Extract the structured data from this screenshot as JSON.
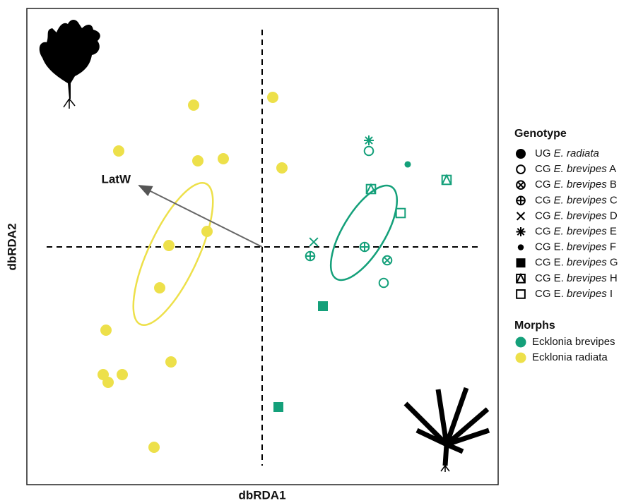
{
  "chart_data": {
    "type": "scatter",
    "x_label": "dbRDA1",
    "y_label": "dbRDA2",
    "xlim": [
      -3.33,
      3.34
    ],
    "ylim": [
      -3.37,
      3.38
    ],
    "arrow": {
      "label": "LatW",
      "x": -1.74,
      "y": 0.87
    },
    "legend_title": "Genotype",
    "morph_title": "Morphs",
    "morphs": [
      {
        "name": "Ecklonia brevipes",
        "color": "#14a07a"
      },
      {
        "name": "Ecklonia radiata",
        "color": "#ede04a"
      }
    ],
    "ellipses": [
      {
        "morph": 1,
        "cx": -1.26,
        "cy": -0.1,
        "rx": 1.1,
        "ry": 0.35,
        "angle": 65
      },
      {
        "morph": 0,
        "cx": 1.44,
        "cy": 0.2,
        "rx": 0.76,
        "ry": 0.3,
        "angle": 59
      }
    ],
    "series": [
      {
        "label_prefix": "UG",
        "label_italic": "E. radiata",
        "shape": "circle-filled",
        "morph": 1,
        "x": [
          -0.97,
          0.15,
          -2.03,
          -0.91,
          -0.55,
          0.28,
          -0.78,
          -1.32,
          -1.45,
          -2.21,
          -1.29,
          -2.25,
          -1.98,
          -2.18,
          -1.53
        ],
        "y": [
          2.01,
          2.12,
          1.36,
          1.22,
          1.25,
          1.12,
          0.22,
          0.02,
          -0.58,
          -1.18,
          -1.63,
          -1.81,
          -1.81,
          -1.92,
          -2.84
        ]
      },
      {
        "label_prefix": "CG",
        "label_italic": "E. brevipes",
        "label_suffix": "A",
        "shape": "circle-open",
        "morph": 0,
        "x": [
          1.51,
          1.72
        ],
        "y": [
          1.36,
          -0.51
        ]
      },
      {
        "label_prefix": "CG",
        "label_italic": "E. brevipes",
        "label_suffix": "B",
        "shape": "circle-x",
        "morph": 0,
        "x": [
          1.77
        ],
        "y": [
          -0.19
        ]
      },
      {
        "label_prefix": "CG",
        "label_italic": "E. brevipes",
        "label_suffix": "C",
        "shape": "circle-plus",
        "morph": 0,
        "x": [
          0.68,
          1.45
        ],
        "y": [
          -0.13,
          0.0
        ]
      },
      {
        "label_prefix": "CG",
        "label_italic": "E. brevipes",
        "label_suffix": "D",
        "shape": "cross",
        "morph": 0,
        "x": [
          0.73
        ],
        "y": [
          0.07
        ]
      },
      {
        "label_prefix": "CG",
        "label_italic": "E. brevipes",
        "label_suffix": "E",
        "shape": "asterisk",
        "morph": 0,
        "x": [
          1.51
        ],
        "y": [
          1.51
        ]
      },
      {
        "label_prefix": "CG E.",
        "label_italic": "brevipes",
        "label_suffix": "F",
        "shape": "dot",
        "morph": 0,
        "x": [
          2.06
        ],
        "y": [
          1.17
        ]
      },
      {
        "label_prefix": "CG E.",
        "label_italic": "brevipes",
        "label_suffix": "G",
        "shape": "square-filled",
        "morph": 0,
        "x": [
          0.86,
          0.23
        ],
        "y": [
          -0.84,
          -2.27
        ]
      },
      {
        "label_prefix": "CG E.",
        "label_italic": "brevipes",
        "label_suffix": "H",
        "shape": "square-triangle",
        "morph": 0,
        "x": [
          2.61,
          1.54
        ],
        "y": [
          0.95,
          0.82
        ]
      },
      {
        "label_prefix": "CG E.",
        "label_italic": "brevipes",
        "label_suffix": "I",
        "shape": "square-open",
        "morph": 0,
        "x": [
          1.96
        ],
        "y": [
          0.48
        ]
      }
    ]
  }
}
